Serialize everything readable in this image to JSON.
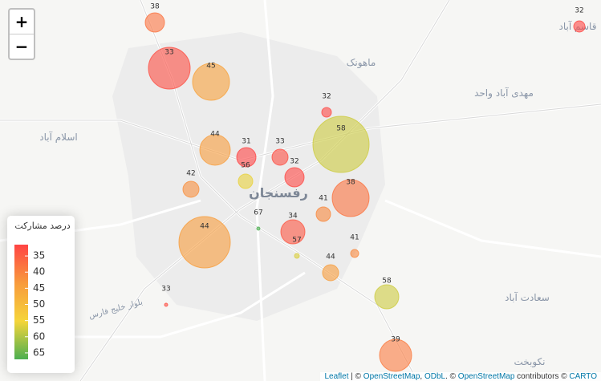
{
  "map": {
    "zoom_in": "+",
    "zoom_out": "−",
    "places": [
      "ماهونک",
      "مهدی آباد واحد",
      "اسلام آباد",
      "رفسنجان",
      "سعادت آباد",
      "قاسم آباد",
      "بلوار خلیج فارس",
      "نکوبخت"
    ],
    "bubbles": [
      {
        "value": 38,
        "size": 12
      },
      {
        "value": 33,
        "size": 26
      },
      {
        "value": 45,
        "size": 23
      },
      {
        "value": 32,
        "size": 6
      },
      {
        "value": 58,
        "size": 35
      },
      {
        "value": 44,
        "size": 19
      },
      {
        "value": 31,
        "size": 12
      },
      {
        "value": 33,
        "size": 10
      },
      {
        "value": 32,
        "size": 12
      },
      {
        "value": 56,
        "size": 9
      },
      {
        "value": 42,
        "size": 10
      },
      {
        "value": 38,
        "size": 23
      },
      {
        "value": 41,
        "size": 9
      },
      {
        "value": 67,
        "size": 2
      },
      {
        "value": 34,
        "size": 15
      },
      {
        "value": 57,
        "size": 3
      },
      {
        "value": 41,
        "size": 5
      },
      {
        "value": 44,
        "size": 32
      },
      {
        "value": 44,
        "size": 10
      },
      {
        "value": 58,
        "size": 15
      },
      {
        "value": 33,
        "size": 2
      },
      {
        "value": 39,
        "size": 20
      },
      {
        "value": 32,
        "size": 7
      }
    ],
    "legend": {
      "title": "درصد مشارکت",
      "colorlim": [
        31.5,
        67
      ],
      "ticks": [
        35,
        40,
        45,
        50,
        55,
        60,
        65
      ],
      "colors": [
        "#f44",
        "#f89a3c",
        "#f5d53a",
        "#4caf50"
      ]
    },
    "attribution": [
      "Leaflet",
      " | © ",
      "OpenStreetMap",
      ", ",
      "ODbL",
      ". © ",
      "OpenStreetMap",
      " contributors © ",
      "CARTO"
    ]
  }
}
